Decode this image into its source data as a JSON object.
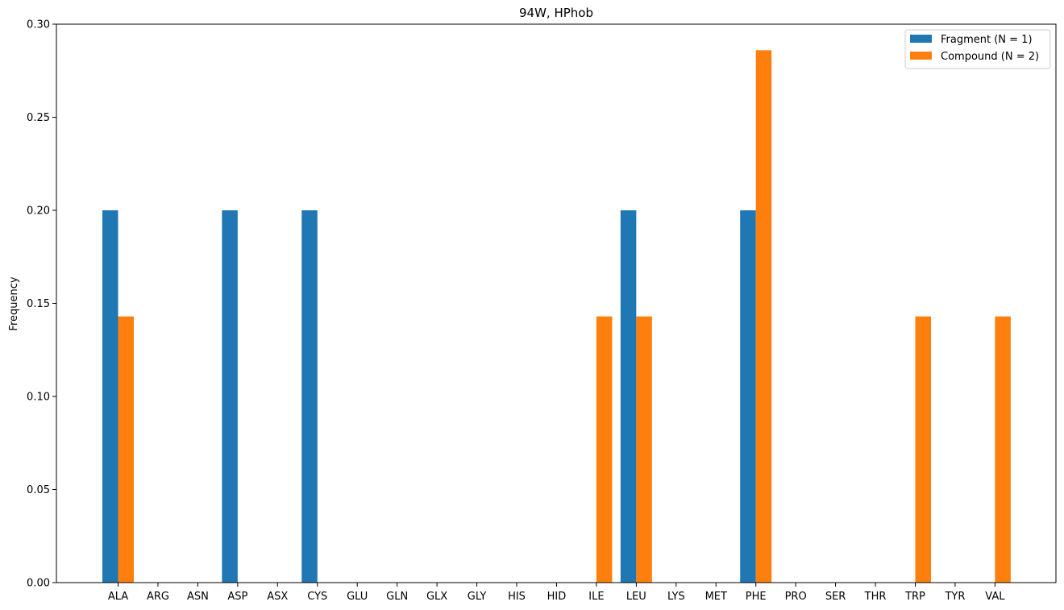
{
  "chart_data": {
    "type": "bar",
    "title": "94W, HPhob",
    "xlabel": "",
    "ylabel": "Frequency",
    "ylim": [
      0,
      0.3
    ],
    "yticks": [
      "0.00",
      "0.05",
      "0.10",
      "0.15",
      "0.20",
      "0.25",
      "0.30"
    ],
    "categories": [
      "ALA",
      "ARG",
      "ASN",
      "ASP",
      "ASX",
      "CYS",
      "GLU",
      "GLN",
      "GLX",
      "GLY",
      "HIS",
      "HID",
      "ILE",
      "LEU",
      "LYS",
      "MET",
      "PHE",
      "PRO",
      "SER",
      "THR",
      "TRP",
      "TYR",
      "VAL"
    ],
    "series": [
      {
        "name": "Fragment (N = 1)",
        "color": "#1f77b4",
        "values": [
          0.2,
          0,
          0,
          0.2,
          0,
          0.2,
          0,
          0,
          0,
          0,
          0,
          0,
          0,
          0.2,
          0,
          0,
          0.2,
          0,
          0,
          0,
          0,
          0,
          0
        ]
      },
      {
        "name": "Compound (N = 2)",
        "color": "#ff7f0e",
        "values": [
          0.143,
          0,
          0,
          0,
          0,
          0,
          0,
          0,
          0,
          0,
          0,
          0,
          0.143,
          0.143,
          0,
          0,
          0.286,
          0,
          0,
          0,
          0.143,
          0,
          0.143
        ]
      }
    ],
    "legend_position": "top-right",
    "grid": false
  }
}
